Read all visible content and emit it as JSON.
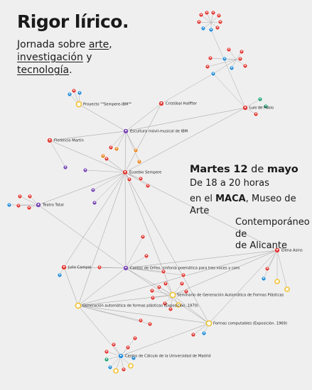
{
  "header": {
    "title": "Rigor lírico.",
    "intro": {
      "line1": [
        "Jornada sobre",
        "arte",
        ","
      ],
      "line2": [
        "investigación",
        "y"
      ],
      "line3": [
        "tecnología",
        "."
      ]
    }
  },
  "event": {
    "date": [
      "Martes",
      "12",
      "de",
      "mayo"
    ],
    "time": "De 18 a 20 horas",
    "place": {
      "line1": [
        "en el",
        "MACA",
        ", Museo de Arte"
      ],
      "line2": "Contemporáneo de",
      "line3": "de Alicante"
    }
  },
  "nodes": [
    {
      "label": "Proyecto \"\"Sempere-IBM\"\""
    },
    {
      "label": "Cristóbal Halffter"
    },
    {
      "label": "Luis de Pablo"
    },
    {
      "label": "Escultura móvil-musical de IBM"
    },
    {
      "label": "Florencio Martín"
    },
    {
      "label": "Eusebio Sempere"
    },
    {
      "label": "Teatro Total"
    },
    {
      "label": "Elena Asins"
    },
    {
      "label": "Julio Campal"
    },
    {
      "label": "Cantos de Orfeo, sinfonía poemática para tres voces y coro"
    },
    {
      "label": "Seminario de Generación Automática de Formas Plásticas"
    },
    {
      "label": "Generación automática de formas plásticas (Exposición, 1970)"
    },
    {
      "label": "Formas computables (Exposición. 1969)"
    },
    {
      "label": "Centro de Cálculo de la Universidad de Madrid"
    }
  ]
}
